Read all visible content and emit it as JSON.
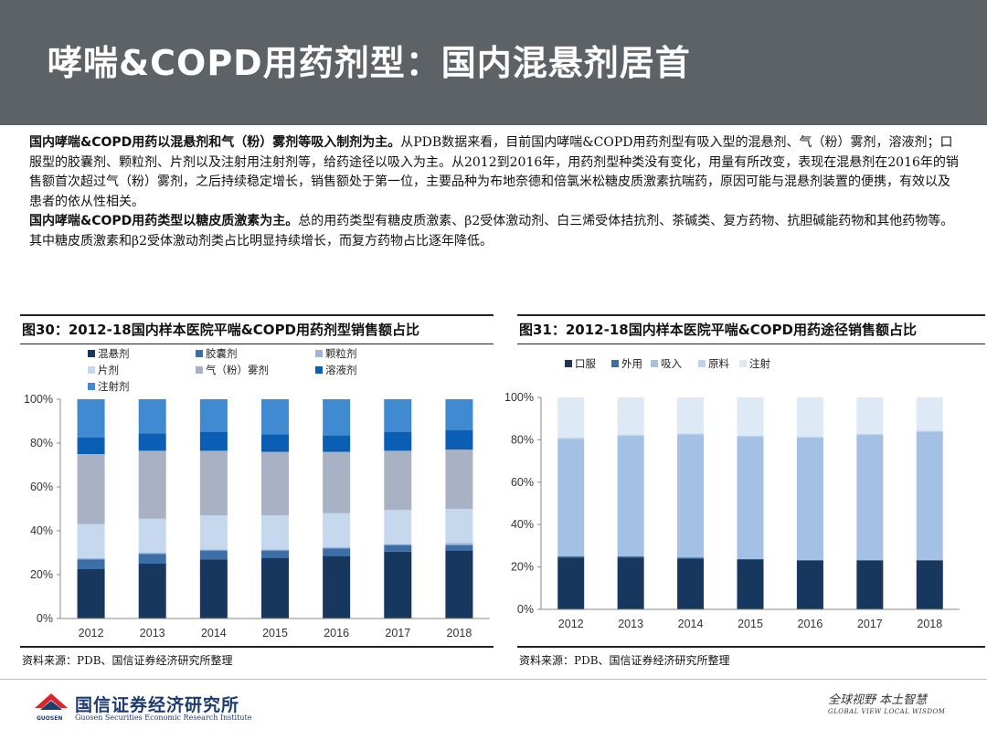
{
  "title": "哮喘&COPD用药剂型：国内混悬剂居首",
  "intro": {
    "p1_bold": "国内哮喘&COPD用药以混悬剂和气（粉）雾剂等吸入制剂为主。",
    "p1_text": "从PDB数据来看，目前国内哮喘&COPD用药剂型有吸入型的混悬剂、气（粉）雾剂，溶液剂；口服型的胶囊剂、颗粒剂、片剂以及注射用注射剂等，给药途径以吸入为主。从2012到2016年，用药剂型种类没有变化，用量有所改变，表现在混悬剂在2016年的销售额首次超过气（粉）雾剂，之后持续稳定增长，销售额处于第一位，主要品种为布地奈德和倍氯米松糖皮质激素抗喘药，原因可能与混悬剂装置的便携，有效以及患者的依从性相关。",
    "p2_bold": "国内哮喘&COPD用药类型以糖皮质激素为主。",
    "p2_text": "总的用药类型有糖皮质激素、β2受体激动剂、白三烯受体拮抗剂、茶碱类、复方药物、抗胆碱能药物和其他药物等。其中糖皮质激素和β2受体激动剂类占比明显持续增长，而复方药物占比逐年降低。"
  },
  "figure30": {
    "title": "图30：2012-18国内样本医院平喘&COPD用药剂型销售额占比",
    "source": "资料来源：PDB、国信证券经济研究所整理"
  },
  "figure31": {
    "title": "图31：2012-18国内样本医院平喘&COPD用药途径销售额占比",
    "source": "资料来源：PDB、国信证券经济研究所整理"
  },
  "chart_data": [
    {
      "type": "bar",
      "stacked": true,
      "percent": true,
      "title": "图30：2012-18国内样本医院平喘&COPD用药剂型销售额占比",
      "categories": [
        "2012",
        "2013",
        "2014",
        "2015",
        "2016",
        "2017",
        "2018"
      ],
      "ylim": [
        0,
        100
      ],
      "yticks": [
        "0%",
        "20%",
        "40%",
        "60%",
        "80%",
        "100%"
      ],
      "legend_placement": "top",
      "series": [
        {
          "name": "混悬剂",
          "color": "#17375e",
          "values": [
            22.5,
            25,
            27,
            27.5,
            28.5,
            30.5,
            31
          ]
        },
        {
          "name": "胶囊剂",
          "color": "#3c6fa8",
          "values": [
            4.5,
            4.5,
            4,
            3.5,
            3.5,
            3,
            2.5
          ]
        },
        {
          "name": "颗粒剂",
          "color": "#9db6d8",
          "values": [
            0.5,
            0.5,
            0.5,
            0.5,
            0.5,
            0.5,
            1
          ]
        },
        {
          "name": "片剂",
          "color": "#c5d8ee",
          "values": [
            15.5,
            15.5,
            15.5,
            15.5,
            15.5,
            15.5,
            15.5
          ]
        },
        {
          "name": "气（粉）雾剂",
          "color": "#a9b1c4",
          "values": [
            32,
            31,
            29.5,
            29,
            28,
            27,
            27
          ]
        },
        {
          "name": "溶液剂",
          "color": "#0a5fb4",
          "values": [
            7.5,
            8,
            8.5,
            8,
            7.5,
            8.5,
            9
          ]
        },
        {
          "name": "注射剂",
          "color": "#3f8ad0",
          "values": [
            17.5,
            15.5,
            15,
            16,
            16.5,
            15,
            14
          ]
        }
      ]
    },
    {
      "type": "bar",
      "stacked": true,
      "percent": true,
      "title": "图31：2012-18国内样本医院平喘&COPD用药途径销售额占比",
      "categories": [
        "2012",
        "2013",
        "2014",
        "2015",
        "2016",
        "2017",
        "2018"
      ],
      "ylim": [
        0,
        100
      ],
      "yticks": [
        "0%",
        "20%",
        "40%",
        "60%",
        "80%",
        "100%"
      ],
      "legend_placement": "top",
      "series": [
        {
          "name": "口服",
          "color": "#17375e",
          "values": [
            24.5,
            24.5,
            24,
            23.5,
            23,
            23,
            23
          ]
        },
        {
          "name": "外用",
          "color": "#3c6fa8",
          "values": [
            0.5,
            0.5,
            0.5,
            0.3,
            0.3,
            0.3,
            0.3
          ]
        },
        {
          "name": "吸入",
          "color": "#a4c0e4",
          "values": [
            55.5,
            57,
            58,
            57.7,
            57.7,
            59,
            60.5
          ]
        },
        {
          "name": "原料",
          "color": "#c0d4ee",
          "values": [
            0.5,
            0.5,
            0.5,
            0.5,
            0.5,
            0.5,
            0.5
          ]
        },
        {
          "name": "注射",
          "color": "#dde9f5",
          "values": [
            19,
            17.5,
            17,
            18,
            18.5,
            17.2,
            15.7
          ]
        }
      ]
    }
  ],
  "footer": {
    "company_cn": "国信证券经济研究所",
    "company_en": "Guosen Securities Economic Research Institute",
    "logo_small": "GUOSEN",
    "slogan_cn": "全球视野  本土智慧",
    "slogan_en": "GLOBAL VIEW  LOCAL WISDOM"
  },
  "colors": {
    "title_bar": "#5d6266",
    "brand_navy": "#1e3b6e",
    "brand_red": "#d9262c"
  }
}
